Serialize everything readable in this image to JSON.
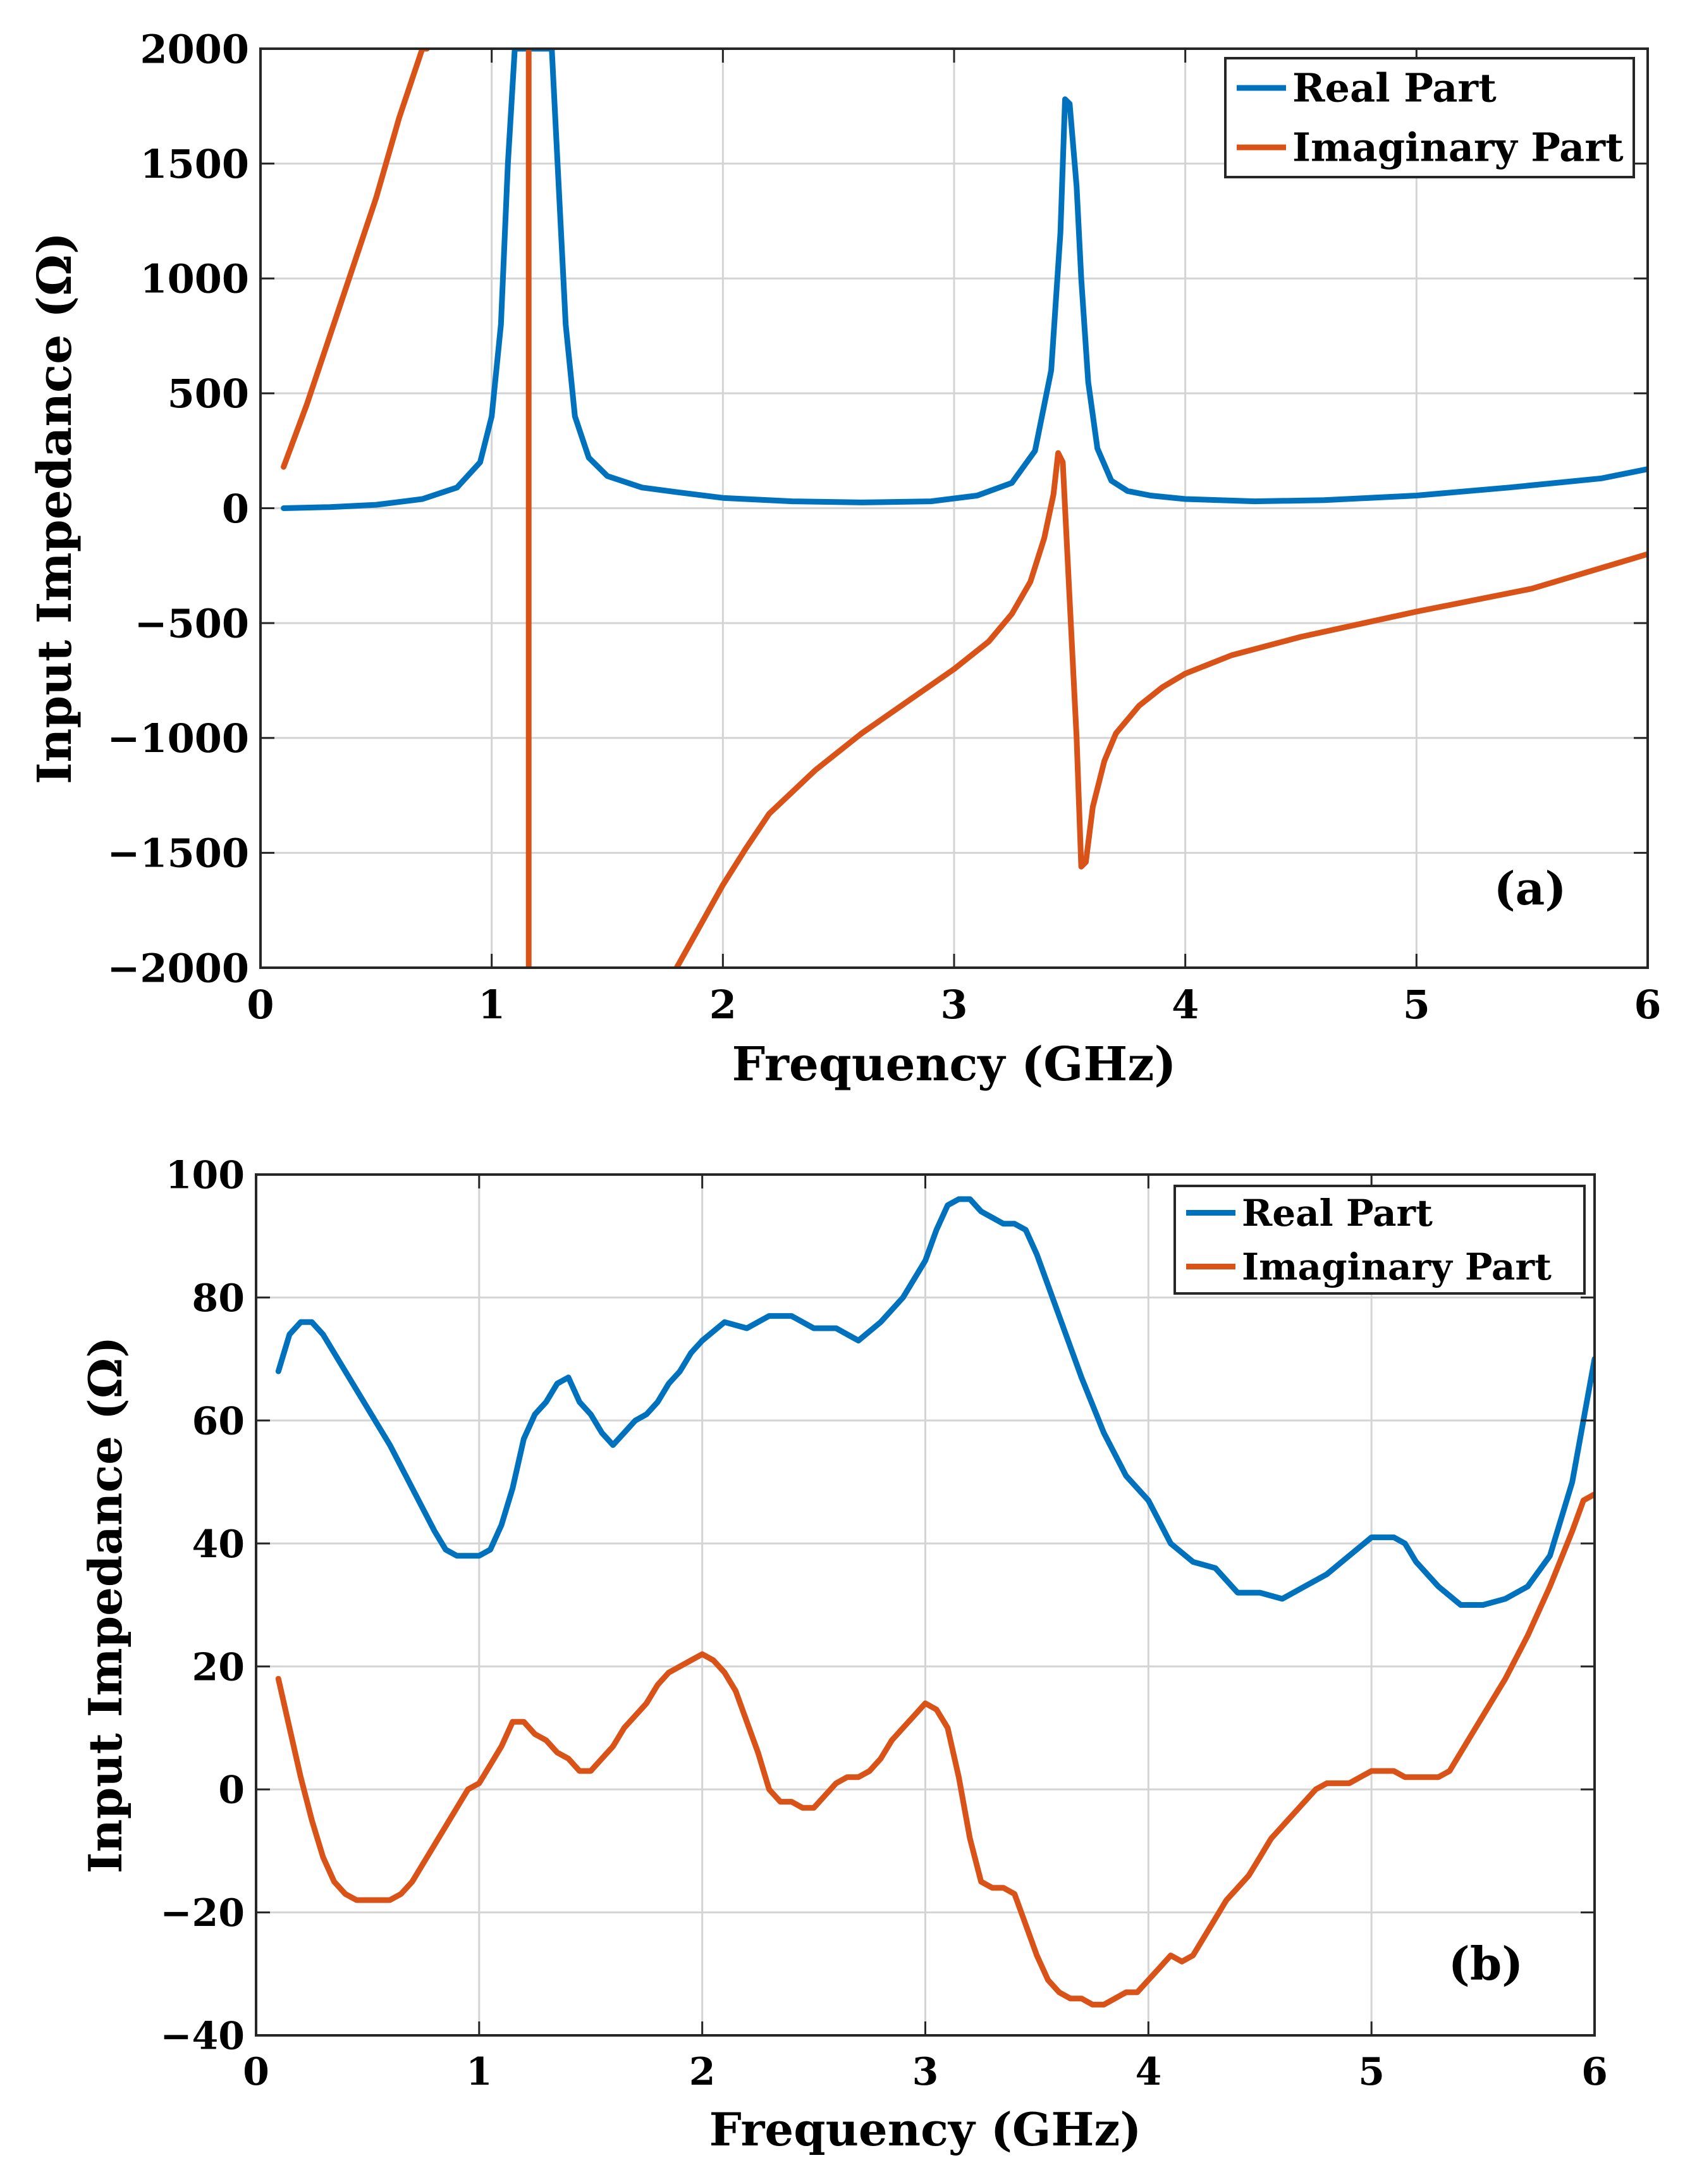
{
  "chart_data": [
    {
      "type": "line",
      "panel_label": "(a)",
      "xlabel": "Frequency (GHz)",
      "ylabel": "Input Impedance (Ω)",
      "xlim": [
        0,
        6
      ],
      "ylim": [
        -2000,
        2000
      ],
      "xticks": [
        0,
        1,
        2,
        3,
        4,
        5,
        6
      ],
      "xtick_labels": [
        "0",
        "1",
        "2",
        "3",
        "4",
        "5",
        "6"
      ],
      "yticks": [
        2000,
        1500,
        1000,
        500,
        0,
        -500,
        -1000,
        -1500,
        -2000
      ],
      "ytick_labels": [
        "2000",
        "1500",
        "1000",
        "500",
        "0",
        "−500",
        "−1000",
        "−1500",
        "−2000"
      ],
      "grid": true,
      "legend_position": "top-right",
      "series": [
        {
          "name": "Real Part",
          "color": "#0072BD",
          "x": [
            0.1,
            0.3,
            0.5,
            0.7,
            0.85,
            0.95,
            1.0,
            1.04,
            1.07,
            1.1,
            1.26,
            1.29,
            1.32,
            1.36,
            1.42,
            1.5,
            1.65,
            1.8,
            2.0,
            2.3,
            2.6,
            2.9,
            3.1,
            3.25,
            3.35,
            3.42,
            3.46,
            3.48,
            3.5,
            3.53,
            3.55,
            3.58,
            3.62,
            3.68,
            3.75,
            3.85,
            4.0,
            4.3,
            4.6,
            5.0,
            5.4,
            5.8,
            6.0
          ],
          "y": [
            0,
            5,
            15,
            40,
            90,
            200,
            400,
            800,
            1500,
            2000,
            2000,
            1400,
            800,
            400,
            220,
            140,
            90,
            70,
            45,
            30,
            25,
            30,
            55,
            110,
            250,
            600,
            1200,
            1780,
            1760,
            1400,
            1000,
            550,
            260,
            120,
            75,
            55,
            40,
            30,
            35,
            55,
            90,
            130,
            170
          ]
        },
        {
          "name": "Imaginary Part",
          "color": "#D95319",
          "segments": [
            {
              "x": [
                0.1,
                0.2,
                0.3,
                0.4,
                0.5,
                0.6,
                0.7,
                0.72
              ],
              "y": [
                180,
                450,
                750,
                1050,
                1350,
                1700,
                2000,
                2000
              ]
            },
            {
              "x": [
                1.16,
                1.16
              ],
              "y": [
                2000,
                -2000
              ]
            },
            {
              "x": [
                1.8,
                1.9,
                2.0,
                2.1,
                2.2,
                2.4,
                2.6,
                2.8,
                3.0,
                3.15,
                3.25,
                3.33,
                3.39,
                3.43,
                3.45,
                3.47,
                3.5,
                3.53,
                3.55,
                3.57,
                3.6,
                3.65,
                3.7,
                3.8,
                3.9,
                4.0,
                4.2,
                4.5,
                5.0,
                5.5,
                6.0
              ],
              "y": [
                -2000,
                -1820,
                -1640,
                -1480,
                -1330,
                -1140,
                -980,
                -840,
                -700,
                -580,
                -460,
                -320,
                -130,
                60,
                240,
                200,
                -400,
                -1000,
                -1560,
                -1540,
                -1300,
                -1100,
                -980,
                -860,
                -780,
                -720,
                -640,
                -560,
                -450,
                -350,
                -200
              ]
            }
          ]
        }
      ]
    },
    {
      "type": "line",
      "panel_label": "(b)",
      "xlabel": "Frequency (GHz)",
      "ylabel": "Input Impedance (Ω)",
      "xlim": [
        0,
        6
      ],
      "ylim": [
        -40,
        100
      ],
      "xticks": [
        0,
        1,
        2,
        3,
        4,
        5,
        6
      ],
      "xtick_labels": [
        "0",
        "1",
        "2",
        "3",
        "4",
        "5",
        "6"
      ],
      "yticks": [
        100,
        80,
        60,
        40,
        20,
        0,
        -20,
        -40
      ],
      "ytick_labels": [
        "100",
        "80",
        "60",
        "40",
        "20",
        "0",
        "−20",
        "−40"
      ],
      "grid": true,
      "legend_position": "top-right",
      "series": [
        {
          "name": "Real Part",
          "color": "#0072BD",
          "x": [
            0.1,
            0.15,
            0.2,
            0.25,
            0.3,
            0.4,
            0.5,
            0.6,
            0.7,
            0.8,
            0.85,
            0.9,
            0.95,
            1.0,
            1.05,
            1.1,
            1.15,
            1.2,
            1.25,
            1.3,
            1.35,
            1.4,
            1.45,
            1.5,
            1.55,
            1.6,
            1.65,
            1.7,
            1.75,
            1.8,
            1.85,
            1.9,
            1.95,
            2.0,
            2.1,
            2.2,
            2.3,
            2.35,
            2.4,
            2.5,
            2.6,
            2.7,
            2.8,
            2.9,
            3.0,
            3.05,
            3.1,
            3.15,
            3.2,
            3.25,
            3.3,
            3.35,
            3.4,
            3.45,
            3.5,
            3.6,
            3.7,
            3.8,
            3.9,
            4.0,
            4.1,
            4.2,
            4.3,
            4.4,
            4.5,
            4.6,
            4.7,
            4.8,
            4.9,
            5.0,
            5.05,
            5.1,
            5.15,
            5.2,
            5.3,
            5.4,
            5.5,
            5.6,
            5.7,
            5.8,
            5.9,
            6.0
          ],
          "y": [
            68,
            74,
            76,
            76,
            74,
            68,
            62,
            56,
            49,
            42,
            39,
            38,
            38,
            38,
            39,
            43,
            49,
            57,
            61,
            63,
            66,
            67,
            63,
            61,
            58,
            56,
            58,
            60,
            61,
            63,
            66,
            68,
            71,
            73,
            76,
            75,
            77,
            77,
            77,
            75,
            75,
            73,
            76,
            80,
            86,
            91,
            95,
            96,
            96,
            94,
            93,
            92,
            92,
            91,
            87,
            77,
            67,
            58,
            51,
            47,
            40,
            37,
            36,
            32,
            32,
            31,
            33,
            35,
            38,
            41,
            41,
            41,
            40,
            37,
            33,
            30,
            30,
            31,
            33,
            38,
            50,
            70
          ]
        },
        {
          "name": "Imaginary Part",
          "color": "#D95319",
          "x": [
            0.1,
            0.15,
            0.2,
            0.25,
            0.3,
            0.35,
            0.4,
            0.45,
            0.5,
            0.55,
            0.6,
            0.65,
            0.7,
            0.75,
            0.8,
            0.85,
            0.9,
            0.95,
            1.0,
            1.05,
            1.1,
            1.15,
            1.2,
            1.25,
            1.3,
            1.35,
            1.4,
            1.45,
            1.5,
            1.55,
            1.6,
            1.65,
            1.7,
            1.75,
            1.8,
            1.85,
            1.9,
            1.95,
            2.0,
            2.05,
            2.1,
            2.15,
            2.2,
            2.25,
            2.3,
            2.35,
            2.4,
            2.45,
            2.5,
            2.55,
            2.6,
            2.65,
            2.7,
            2.75,
            2.8,
            2.85,
            2.9,
            2.95,
            3.0,
            3.05,
            3.1,
            3.15,
            3.2,
            3.25,
            3.3,
            3.35,
            3.4,
            3.45,
            3.5,
            3.55,
            3.6,
            3.65,
            3.7,
            3.75,
            3.8,
            3.85,
            3.9,
            3.95,
            4.0,
            4.05,
            4.1,
            4.15,
            4.2,
            4.25,
            4.3,
            4.35,
            4.4,
            4.45,
            4.5,
            4.55,
            4.6,
            4.65,
            4.7,
            4.75,
            4.8,
            4.85,
            4.9,
            4.95,
            5.0,
            5.05,
            5.1,
            5.15,
            5.2,
            5.25,
            5.3,
            5.35,
            5.4,
            5.45,
            5.5,
            5.55,
            5.6,
            5.7,
            5.8,
            5.9,
            5.95,
            6.0
          ],
          "y": [
            18,
            10,
            2,
            -5,
            -11,
            -15,
            -17,
            -18,
            -18,
            -18,
            -18,
            -17,
            -15,
            -12,
            -9,
            -6,
            -3,
            0,
            1,
            4,
            7,
            11,
            11,
            9,
            8,
            6,
            5,
            3,
            3,
            5,
            7,
            10,
            12,
            14,
            17,
            19,
            20,
            21,
            22,
            21,
            19,
            16,
            11,
            6,
            0,
            -2,
            -2,
            -3,
            -3,
            -1,
            1,
            2,
            2,
            3,
            5,
            8,
            10,
            12,
            14,
            13,
            10,
            2,
            -8,
            -15,
            -16,
            -16,
            -17,
            -22,
            -27,
            -31,
            -33,
            -34,
            -34,
            -35,
            -35,
            -34,
            -33,
            -33,
            -31,
            -29,
            -27,
            -28,
            -27,
            -24,
            -21,
            -18,
            -16,
            -14,
            -11,
            -8,
            -6,
            -4,
            -2,
            0,
            1,
            1,
            1,
            2,
            3,
            3,
            3,
            2,
            2,
            2,
            2,
            3,
            6,
            9,
            12,
            15,
            18,
            25,
            33,
            42,
            47,
            48
          ]
        }
      ]
    }
  ]
}
